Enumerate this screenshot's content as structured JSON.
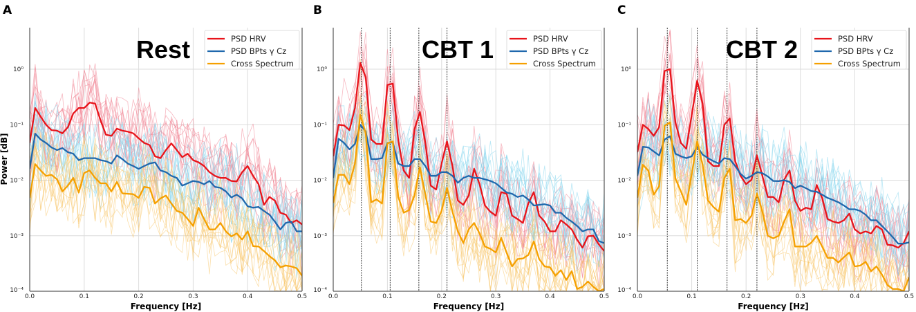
{
  "chart_data": [
    {
      "type": "line",
      "panel_label": "A",
      "title": "Rest",
      "xlabel": "Frequency [Hz]",
      "ylabel": "Power [dB]",
      "xlim": [
        0,
        0.5
      ],
      "ylim": [
        0.0001,
        5.6
      ],
      "yscale": "log",
      "grid": true,
      "legend_position": "top-right",
      "x_ticks": [
        "0.0",
        "0.1",
        "0.2",
        "0.3",
        "0.4",
        "0.5"
      ],
      "y_ticks": [
        "10⁰",
        "10⁻¹",
        "10⁻²",
        "10⁻³",
        "10⁻⁴"
      ],
      "vlines": [],
      "x": [
        0,
        0.01,
        0.02,
        0.03,
        0.04,
        0.05,
        0.06,
        0.07,
        0.08,
        0.09,
        0.1,
        0.11,
        0.12,
        0.13,
        0.14,
        0.15,
        0.16,
        0.17,
        0.18,
        0.19,
        0.2,
        0.21,
        0.22,
        0.23,
        0.24,
        0.25,
        0.26,
        0.27,
        0.28,
        0.29,
        0.3,
        0.31,
        0.32,
        0.33,
        0.34,
        0.35,
        0.36,
        0.37,
        0.38,
        0.39,
        0.4,
        0.41,
        0.42,
        0.43,
        0.44,
        0.45,
        0.46,
        0.47,
        0.48,
        0.49,
        0.5
      ],
      "series": [
        {
          "name": "PSD HRV",
          "color": "#e8141b",
          "values": [
            0.047,
            0.2,
            0.14,
            0.1,
            0.08,
            0.078,
            0.07,
            0.09,
            0.16,
            0.2,
            0.2,
            0.25,
            0.24,
            0.12,
            0.066,
            0.063,
            0.085,
            0.078,
            0.075,
            0.07,
            0.057,
            0.047,
            0.043,
            0.027,
            0.025,
            0.035,
            0.046,
            0.035,
            0.026,
            0.03,
            0.023,
            0.021,
            0.018,
            0.014,
            0.012,
            0.011,
            0.011,
            0.0097,
            0.0095,
            0.014,
            0.018,
            0.012,
            0.0085,
            0.0036,
            0.005,
            0.0043,
            0.0026,
            0.0024,
            0.0017,
            0.0019,
            0.0016
          ]
        },
        {
          "name": "PSD BPts γ Cz",
          "color": "#1f68ad",
          "values": [
            0.016,
            0.069,
            0.054,
            0.047,
            0.039,
            0.035,
            0.038,
            0.032,
            0.03,
            0.023,
            0.025,
            0.025,
            0.025,
            0.023,
            0.022,
            0.02,
            0.028,
            0.024,
            0.02,
            0.018,
            0.016,
            0.018,
            0.02,
            0.021,
            0.015,
            0.014,
            0.012,
            0.011,
            0.008,
            0.0088,
            0.0097,
            0.0093,
            0.0085,
            0.0097,
            0.0076,
            0.0073,
            0.0063,
            0.0049,
            0.0055,
            0.0047,
            0.0034,
            0.0032,
            0.0033,
            0.0028,
            0.0024,
            0.0018,
            0.0013,
            0.0017,
            0.0018,
            0.0012,
            0.0012
          ]
        },
        {
          "name": "Cross Spectrum",
          "color": "#f5a000",
          "values": [
            0.0048,
            0.0195,
            0.015,
            0.012,
            0.0125,
            0.0104,
            0.0063,
            0.008,
            0.011,
            0.006,
            0.0135,
            0.015,
            0.011,
            0.0088,
            0.0088,
            0.0063,
            0.0093,
            0.0058,
            0.0057,
            0.0056,
            0.0048,
            0.0076,
            0.0073,
            0.0038,
            0.0047,
            0.0053,
            0.0038,
            0.0028,
            0.0026,
            0.002,
            0.0015,
            0.0032,
            0.002,
            0.0013,
            0.0013,
            0.0017,
            0.0012,
            0.00097,
            0.0011,
            0.00085,
            0.0012,
            0.00065,
            0.00064,
            0.00053,
            0.00043,
            0.00036,
            0.00027,
            0.00029,
            0.00028,
            0.00026,
            0.00019
          ]
        }
      ]
    },
    {
      "type": "line",
      "panel_label": "B",
      "title": "CBT 1",
      "xlabel": "Frequency [Hz]",
      "ylabel": "",
      "xlim": [
        0,
        0.5
      ],
      "ylim": [
        0.0001,
        5.6
      ],
      "yscale": "log",
      "grid": true,
      "legend_position": "top-right",
      "x_ticks": [
        "0.0",
        "0.1",
        "0.2",
        "0.3",
        "0.4",
        "0.5"
      ],
      "y_ticks": [
        "10⁰",
        "10⁻¹",
        "10⁻²",
        "10⁻³",
        "10⁻⁴"
      ],
      "vlines": [
        0.052,
        0.105,
        0.158,
        0.21
      ],
      "x": [
        0,
        0.01,
        0.02,
        0.03,
        0.04,
        0.05,
        0.06,
        0.07,
        0.08,
        0.09,
        0.1,
        0.11,
        0.12,
        0.13,
        0.14,
        0.15,
        0.16,
        0.17,
        0.18,
        0.19,
        0.2,
        0.21,
        0.22,
        0.23,
        0.24,
        0.25,
        0.26,
        0.27,
        0.28,
        0.29,
        0.3,
        0.31,
        0.32,
        0.33,
        0.34,
        0.35,
        0.36,
        0.37,
        0.38,
        0.39,
        0.4,
        0.41,
        0.42,
        0.43,
        0.44,
        0.45,
        0.46,
        0.47,
        0.48,
        0.49,
        0.5
      ],
      "series": [
        {
          "name": "PSD HRV",
          "color": "#e8141b",
          "values": [
            0.027,
            0.1,
            0.097,
            0.08,
            0.2,
            1.3,
            0.72,
            0.054,
            0.045,
            0.045,
            0.52,
            0.55,
            0.052,
            0.015,
            0.011,
            0.083,
            0.17,
            0.047,
            0.008,
            0.0068,
            0.02,
            0.05,
            0.018,
            0.0043,
            0.0036,
            0.0053,
            0.016,
            0.0085,
            0.0035,
            0.0027,
            0.0023,
            0.0061,
            0.0057,
            0.0023,
            0.002,
            0.0017,
            0.0038,
            0.0061,
            0.0023,
            0.0018,
            0.0012,
            0.0012,
            0.0019,
            0.0016,
            0.0013,
            0.00085,
            0.00061,
            0.00098,
            0.001,
            0.0007,
            0.00053
          ]
        },
        {
          "name": "PSD BPts γ Cz",
          "color": "#1f68ad",
          "values": [
            0.011,
            0.056,
            0.047,
            0.036,
            0.045,
            0.1,
            0.076,
            0.024,
            0.024,
            0.025,
            0.047,
            0.048,
            0.02,
            0.018,
            0.018,
            0.024,
            0.024,
            0.018,
            0.012,
            0.012,
            0.014,
            0.014,
            0.012,
            0.009,
            0.011,
            0.012,
            0.011,
            0.011,
            0.0104,
            0.0097,
            0.0088,
            0.0073,
            0.006,
            0.0057,
            0.005,
            0.0053,
            0.0045,
            0.0035,
            0.0036,
            0.0037,
            0.0035,
            0.0026,
            0.0026,
            0.0021,
            0.0018,
            0.0015,
            0.0012,
            0.0013,
            0.0013,
            0.0008,
            0.00074
          ]
        },
        {
          "name": "Cross Spectrum",
          "color": "#f5a000",
          "values": [
            0.0039,
            0.0125,
            0.0125,
            0.0085,
            0.02,
            0.15,
            0.07,
            0.004,
            0.0045,
            0.0038,
            0.046,
            0.05,
            0.005,
            0.0026,
            0.0029,
            0.0053,
            0.017,
            0.0055,
            0.0018,
            0.0017,
            0.0028,
            0.0073,
            0.0027,
            0.0012,
            0.00074,
            0.0013,
            0.0017,
            0.0011,
            0.00064,
            0.00058,
            0.0005,
            0.00092,
            0.00049,
            0.00028,
            0.00038,
            0.00039,
            0.00045,
            0.00079,
            0.00038,
            0.00028,
            0.00027,
            0.00019,
            0.00024,
            0.00016,
            0.00023,
            0.00011,
            0.00012,
            0.00015,
            0.00012,
            0.0001,
            0.00011
          ]
        }
      ]
    },
    {
      "type": "line",
      "panel_label": "C",
      "title": "CBT 2",
      "xlabel": "Frequency [Hz]",
      "ylabel": "",
      "xlim": [
        0,
        0.5
      ],
      "ylim": [
        0.0001,
        5.6
      ],
      "yscale": "log",
      "grid": true,
      "legend_position": "top-right",
      "x_ticks": [
        "0.0",
        "0.1",
        "0.2",
        "0.3",
        "0.4",
        "0.5"
      ],
      "y_ticks": [
        "10⁰",
        "10⁻¹",
        "10⁻²",
        "10⁻³",
        "10⁻⁴"
      ],
      "vlines": [
        0.055,
        0.11,
        0.165,
        0.22
      ],
      "x": [
        0,
        0.01,
        0.02,
        0.03,
        0.04,
        0.05,
        0.06,
        0.07,
        0.08,
        0.09,
        0.1,
        0.11,
        0.12,
        0.13,
        0.14,
        0.15,
        0.16,
        0.17,
        0.18,
        0.19,
        0.2,
        0.21,
        0.22,
        0.23,
        0.24,
        0.25,
        0.26,
        0.27,
        0.28,
        0.29,
        0.3,
        0.31,
        0.32,
        0.33,
        0.34,
        0.35,
        0.36,
        0.37,
        0.38,
        0.39,
        0.4,
        0.41,
        0.42,
        0.43,
        0.44,
        0.45,
        0.46,
        0.47,
        0.48,
        0.49,
        0.5
      ],
      "series": [
        {
          "name": "PSD HRV",
          "color": "#e8141b",
          "values": [
            0.032,
            0.1,
            0.084,
            0.063,
            0.09,
            0.93,
            1.0,
            0.11,
            0.047,
            0.037,
            0.15,
            0.62,
            0.24,
            0.022,
            0.018,
            0.018,
            0.1,
            0.13,
            0.022,
            0.012,
            0.0085,
            0.0102,
            0.028,
            0.012,
            0.005,
            0.005,
            0.004,
            0.0102,
            0.015,
            0.0043,
            0.0028,
            0.0032,
            0.003,
            0.0082,
            0.0048,
            0.002,
            0.0018,
            0.0017,
            0.0019,
            0.0025,
            0.0013,
            0.0011,
            0.0012,
            0.0011,
            0.0015,
            0.0013,
            0.00069,
            0.00067,
            0.00061,
            0.00074,
            0.0012
          ]
        },
        {
          "name": "PSD BPts γ Cz",
          "color": "#1f68ad",
          "values": [
            0.012,
            0.04,
            0.039,
            0.033,
            0.028,
            0.054,
            0.062,
            0.03,
            0.027,
            0.025,
            0.027,
            0.04,
            0.029,
            0.025,
            0.022,
            0.02,
            0.025,
            0.024,
            0.018,
            0.013,
            0.0107,
            0.012,
            0.014,
            0.0134,
            0.0117,
            0.0097,
            0.0096,
            0.01,
            0.0093,
            0.0072,
            0.008,
            0.0072,
            0.0064,
            0.0062,
            0.0055,
            0.0048,
            0.0044,
            0.004,
            0.0035,
            0.003,
            0.003,
            0.0028,
            0.0024,
            0.0019,
            0.0019,
            0.0015,
            0.0012,
            0.00094,
            0.00072,
            0.00072,
            0.00076
          ]
        },
        {
          "name": "Cross Spectrum",
          "color": "#f5a000",
          "values": [
            0.0048,
            0.019,
            0.015,
            0.0055,
            0.0078,
            0.096,
            0.11,
            0.0107,
            0.0063,
            0.0036,
            0.013,
            0.05,
            0.019,
            0.0043,
            0.0033,
            0.0027,
            0.011,
            0.016,
            0.0019,
            0.002,
            0.0017,
            0.0023,
            0.0058,
            0.0027,
            0.001,
            0.0009,
            0.001,
            0.0018,
            0.003,
            0.00064,
            0.00064,
            0.00064,
            0.00075,
            0.001,
            0.00064,
            0.0004,
            0.0004,
            0.00033,
            0.00041,
            0.0005,
            0.00028,
            0.00029,
            0.00034,
            0.00023,
            0.00028,
            0.0002,
            0.00013,
            0.00011,
            0.00011,
            0.0001,
            0.00018
          ]
        }
      ]
    }
  ]
}
